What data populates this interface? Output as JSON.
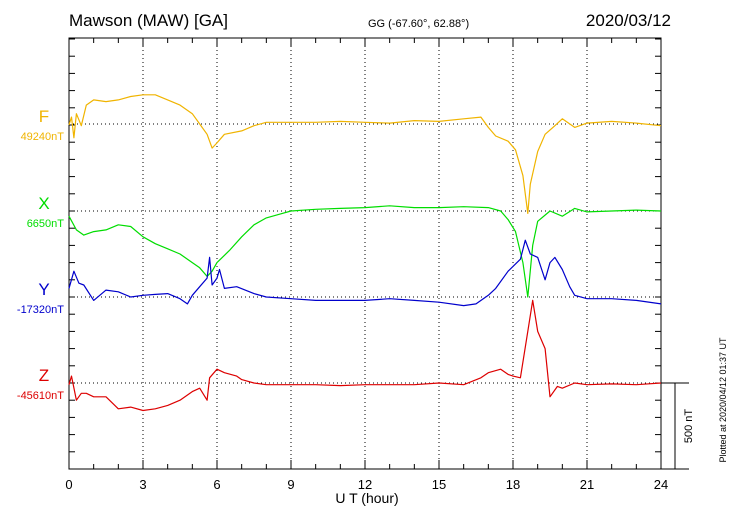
{
  "header": {
    "station": "Mawson (MAW)  [GA]",
    "coords": "GG (-67.60°,  62.88°)",
    "date": "2020/03/12"
  },
  "side_note": "Plotted at 2020/04/12 01:37 UT",
  "scale_bar_label": "500 nT",
  "chart_data": {
    "type": "line",
    "xlabel": "U T (hour)",
    "xlim": [
      0,
      24
    ],
    "xticks": [
      0,
      3,
      6,
      9,
      12,
      15,
      18,
      21,
      24
    ],
    "scale_bar_nT": 500,
    "colors": {
      "F": "#f0b400",
      "X": "#00dd00",
      "Y": "#0000cc",
      "Z": "#dd0000"
    },
    "series": [
      {
        "name": "F",
        "baseline_label": "49240nT",
        "points": [
          [
            0,
            -5
          ],
          [
            0.1,
            40
          ],
          [
            0.2,
            -80
          ],
          [
            0.3,
            60
          ],
          [
            0.5,
            -10
          ],
          [
            0.7,
            110
          ],
          [
            1,
            140
          ],
          [
            1.5,
            130
          ],
          [
            2,
            140
          ],
          [
            2.5,
            160
          ],
          [
            3,
            170
          ],
          [
            3.5,
            170
          ],
          [
            4,
            140
          ],
          [
            4.5,
            110
          ],
          [
            5,
            60
          ],
          [
            5.3,
            0
          ],
          [
            5.6,
            -60
          ],
          [
            5.8,
            -140
          ],
          [
            6,
            -110
          ],
          [
            6.3,
            -60
          ],
          [
            7,
            -40
          ],
          [
            7.5,
            -10
          ],
          [
            8,
            10
          ],
          [
            9,
            10
          ],
          [
            10,
            10
          ],
          [
            11,
            15
          ],
          [
            12,
            10
          ],
          [
            13,
            5
          ],
          [
            14,
            20
          ],
          [
            15,
            15
          ],
          [
            16,
            30
          ],
          [
            16.7,
            40
          ],
          [
            17,
            -20
          ],
          [
            17.3,
            -70
          ],
          [
            17.8,
            -100
          ],
          [
            18.1,
            -150
          ],
          [
            18.4,
            -300
          ],
          [
            18.6,
            -520
          ],
          [
            18.7,
            -350
          ],
          [
            19,
            -160
          ],
          [
            19.3,
            -60
          ],
          [
            19.7,
            -10
          ],
          [
            20,
            30
          ],
          [
            20.5,
            -20
          ],
          [
            21,
            5
          ],
          [
            22,
            15
          ],
          [
            23,
            5
          ],
          [
            24,
            -10
          ]
        ]
      },
      {
        "name": "X",
        "baseline_label": "6650nT",
        "points": [
          [
            0,
            -30
          ],
          [
            0.3,
            -110
          ],
          [
            0.6,
            -140
          ],
          [
            1,
            -120
          ],
          [
            1.5,
            -110
          ],
          [
            2,
            -80
          ],
          [
            2.5,
            -90
          ],
          [
            3,
            -150
          ],
          [
            3.5,
            -190
          ],
          [
            4,
            -220
          ],
          [
            4.5,
            -250
          ],
          [
            5,
            -300
          ],
          [
            5.3,
            -330
          ],
          [
            5.6,
            -380
          ],
          [
            5.8,
            -350
          ],
          [
            6,
            -300
          ],
          [
            6.5,
            -230
          ],
          [
            7,
            -150
          ],
          [
            7.5,
            -80
          ],
          [
            8,
            -40
          ],
          [
            8.5,
            -20
          ],
          [
            9,
            0
          ],
          [
            10,
            10
          ],
          [
            11,
            15
          ],
          [
            12,
            20
          ],
          [
            13,
            30
          ],
          [
            14,
            20
          ],
          [
            15,
            20
          ],
          [
            16,
            25
          ],
          [
            17,
            20
          ],
          [
            17.5,
            0
          ],
          [
            17.8,
            -50
          ],
          [
            18.1,
            -120
          ],
          [
            18.4,
            -300
          ],
          [
            18.6,
            -500
          ],
          [
            18.8,
            -200
          ],
          [
            19,
            -60
          ],
          [
            19.5,
            0
          ],
          [
            20,
            -30
          ],
          [
            20.5,
            15
          ],
          [
            21,
            -5
          ],
          [
            22,
            0
          ],
          [
            23,
            5
          ],
          [
            24,
            0
          ]
        ]
      },
      {
        "name": "Y",
        "baseline_label": "-17320nT",
        "points": [
          [
            0,
            50
          ],
          [
            0.2,
            150
          ],
          [
            0.4,
            80
          ],
          [
            0.6,
            70
          ],
          [
            1,
            -20
          ],
          [
            1.5,
            40
          ],
          [
            2,
            30
          ],
          [
            2.5,
            0
          ],
          [
            3,
            10
          ],
          [
            3.5,
            15
          ],
          [
            4,
            20
          ],
          [
            4.5,
            -10
          ],
          [
            4.8,
            -40
          ],
          [
            5,
            10
          ],
          [
            5.3,
            60
          ],
          [
            5.6,
            110
          ],
          [
            5.7,
            230
          ],
          [
            5.8,
            70
          ],
          [
            6,
            110
          ],
          [
            6.1,
            160
          ],
          [
            6.3,
            50
          ],
          [
            6.8,
            60
          ],
          [
            7.5,
            20
          ],
          [
            8,
            0
          ],
          [
            9,
            -10
          ],
          [
            10,
            -20
          ],
          [
            11,
            -20
          ],
          [
            12,
            -20
          ],
          [
            13,
            -10
          ],
          [
            14,
            -20
          ],
          [
            15,
            -30
          ],
          [
            16,
            -50
          ],
          [
            16.5,
            -40
          ],
          [
            17,
            10
          ],
          [
            17.3,
            50
          ],
          [
            17.8,
            150
          ],
          [
            18.3,
            220
          ],
          [
            18.5,
            330
          ],
          [
            18.7,
            250
          ],
          [
            19,
            230
          ],
          [
            19.3,
            100
          ],
          [
            19.5,
            200
          ],
          [
            19.7,
            230
          ],
          [
            20,
            160
          ],
          [
            20.3,
            60
          ],
          [
            20.5,
            10
          ],
          [
            21,
            -10
          ],
          [
            22,
            -10
          ],
          [
            23,
            -20
          ],
          [
            24,
            -40
          ]
        ]
      },
      {
        "name": "Z",
        "baseline_label": "-45610nT",
        "points": [
          [
            0,
            -10
          ],
          [
            0.1,
            40
          ],
          [
            0.3,
            -100
          ],
          [
            0.5,
            -60
          ],
          [
            0.7,
            -60
          ],
          [
            1,
            -80
          ],
          [
            1.5,
            -80
          ],
          [
            2,
            -150
          ],
          [
            2.5,
            -140
          ],
          [
            3,
            -160
          ],
          [
            3.5,
            -150
          ],
          [
            4,
            -130
          ],
          [
            4.5,
            -100
          ],
          [
            5,
            -50
          ],
          [
            5.3,
            -30
          ],
          [
            5.6,
            -100
          ],
          [
            5.7,
            30
          ],
          [
            6,
            80
          ],
          [
            6.3,
            60
          ],
          [
            6.8,
            40
          ],
          [
            7,
            20
          ],
          [
            7.5,
            0
          ],
          [
            8,
            -10
          ],
          [
            9,
            -10
          ],
          [
            10,
            -10
          ],
          [
            11,
            -15
          ],
          [
            12,
            -10
          ],
          [
            13,
            -10
          ],
          [
            14,
            -10
          ],
          [
            15,
            0
          ],
          [
            16,
            -10
          ],
          [
            16.7,
            30
          ],
          [
            17,
            60
          ],
          [
            17.5,
            80
          ],
          [
            17.8,
            50
          ],
          [
            18,
            40
          ],
          [
            18.3,
            30
          ],
          [
            18.6,
            300
          ],
          [
            18.8,
            480
          ],
          [
            19,
            300
          ],
          [
            19.3,
            200
          ],
          [
            19.5,
            -80
          ],
          [
            19.8,
            -20
          ],
          [
            20,
            -30
          ],
          [
            20.5,
            0
          ],
          [
            21,
            -10
          ],
          [
            22,
            -5
          ],
          [
            23,
            -10
          ],
          [
            24,
            0
          ]
        ]
      }
    ]
  }
}
